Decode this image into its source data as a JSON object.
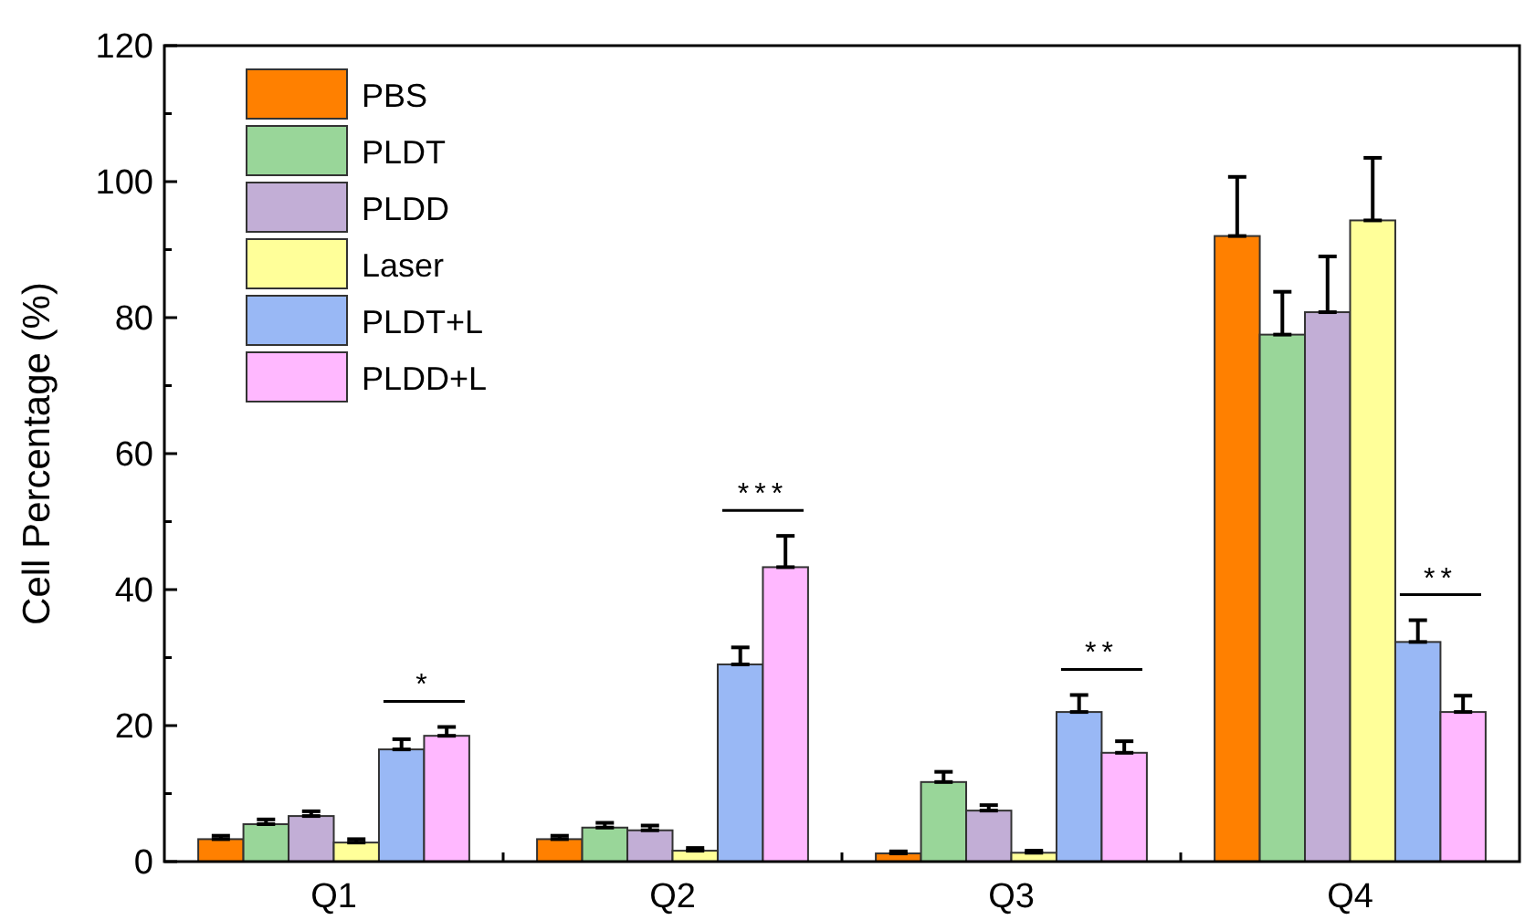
{
  "chart_data": {
    "type": "bar",
    "ylabel": "Cell Percentage (%)",
    "categories": [
      "Q1",
      "Q2",
      "Q3",
      "Q4"
    ],
    "series": [
      {
        "name": "PBS",
        "color": "#ff8000",
        "values": [
          3.3,
          3.3,
          1.2,
          92
        ],
        "errors": [
          [
            3.3,
            3.8
          ],
          [
            3.3,
            3.8
          ],
          [
            1.2,
            1.5
          ],
          [
            92,
            100.7
          ]
        ]
      },
      {
        "name": "PLDT",
        "color": "#99d699",
        "values": [
          5.5,
          5.0,
          11.7,
          77.5
        ],
        "errors": [
          [
            5.5,
            6.2
          ],
          [
            5.0,
            5.7
          ],
          [
            11.7,
            13.2
          ],
          [
            77.5,
            83.8
          ]
        ]
      },
      {
        "name": "PLDD",
        "color": "#c2aed6",
        "values": [
          6.7,
          4.6,
          7.5,
          80.8
        ],
        "errors": [
          [
            6.7,
            7.4
          ],
          [
            4.6,
            5.3
          ],
          [
            7.5,
            8.3
          ],
          [
            80.8,
            89
          ]
        ]
      },
      {
        "name": "Laser",
        "color": "#ffff99",
        "values": [
          2.8,
          1.6,
          1.3,
          94.3
        ],
        "errors": [
          [
            2.8,
            3.3
          ],
          [
            1.6,
            2.0
          ],
          [
            1.3,
            1.6
          ],
          [
            94.3,
            103.5
          ]
        ]
      },
      {
        "name": "PLDT+L",
        "color": "#99b8f5",
        "values": [
          16.5,
          29,
          22,
          32.3
        ],
        "errors": [
          [
            16.5,
            18
          ],
          [
            29,
            31.5
          ],
          [
            22,
            24.5
          ],
          [
            32.3,
            35.5
          ]
        ]
      },
      {
        "name": "PLDD+L",
        "color": "#ffb8ff",
        "values": [
          18.5,
          43.3,
          16,
          22
        ],
        "errors": [
          [
            18.5,
            19.8
          ],
          [
            43.3,
            47.9
          ],
          [
            16,
            17.7
          ],
          [
            22,
            24.4
          ]
        ]
      }
    ],
    "ylim": [
      0,
      120
    ],
    "yticks": [
      0,
      {
        "value": 10,
        "label": null
      },
      20,
      {
        "value": 30,
        "label": null
      },
      40,
      {
        "value": 50,
        "label": null
      },
      60,
      {
        "value": 70,
        "label": null
      },
      80,
      {
        "value": 90,
        "label": null
      },
      100,
      {
        "value": 110,
        "label": null
      },
      120
    ],
    "annotations": [
      "*",
      "***",
      "**",
      "**"
    ],
    "legend": "top left",
    "grid": false
  }
}
